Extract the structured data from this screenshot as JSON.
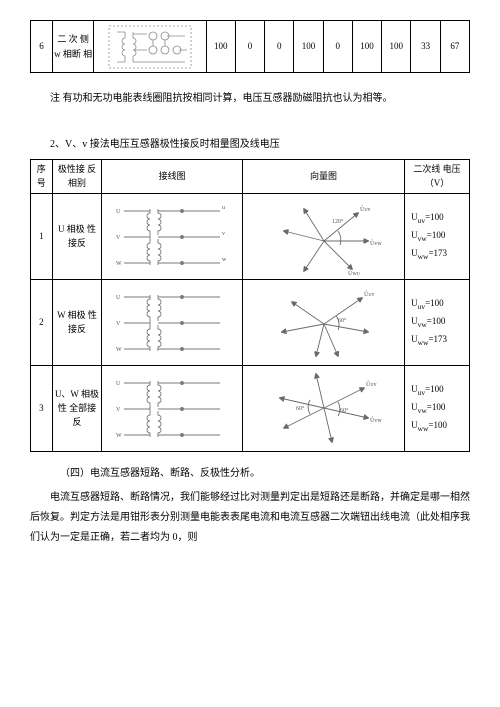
{
  "table1": {
    "row": {
      "num": "6",
      "desc": "二 次 侧 w 相断 相",
      "vals": [
        "100",
        "0",
        "0",
        "100",
        "0",
        "100",
        "100",
        "33",
        "67"
      ]
    }
  },
  "note_text": "注  有功和无功电能表线圈阻抗按相同计算，电压互感器励磁阻抗也认为相等。",
  "subtitle_text": "2、V、v 接法电压互感器极性接反时相量图及线电压",
  "table2": {
    "headers": [
      "序 号",
      "极性接 反相别",
      "接线图",
      "向量图",
      "二次线 电压（V）"
    ],
    "rows": [
      {
        "num": "1",
        "label": "U 相极 性接反",
        "volts": [
          "U<sub>uv</sub>=100",
          "U<sub>vw</sub>=100",
          "U<sub>ww</sub>=173"
        ]
      },
      {
        "num": "2",
        "label": "W 相极 性接反",
        "volts": [
          "U<sub>uv</sub>=100",
          "U<sub>vw</sub>=100",
          "U<sub>ww</sub>=173"
        ]
      },
      {
        "num": "3",
        "label": "U、W 相极性 全部接 反",
        "volts": [
          "U<sub>uv</sub>=100",
          "U<sub>vw</sub>=100",
          "U<sub>ww</sub>=100"
        ]
      }
    ]
  },
  "section_title": "（四）电流互感器短路、断路、反极性分析。",
  "para_text": "电流互感器短路、断路情况，我们能够经过比对测量判定出是短路还是断路，并确定是哪一相然后恢复。判定方法是用钳形表分别测量电能表表尾电流和电流互感器二次端钮出线电流（此处相序我们认为一定是正确，若二者均为 0，则",
  "colors": {
    "stroke": "#6a6a6a",
    "light": "#bdbdbd"
  }
}
